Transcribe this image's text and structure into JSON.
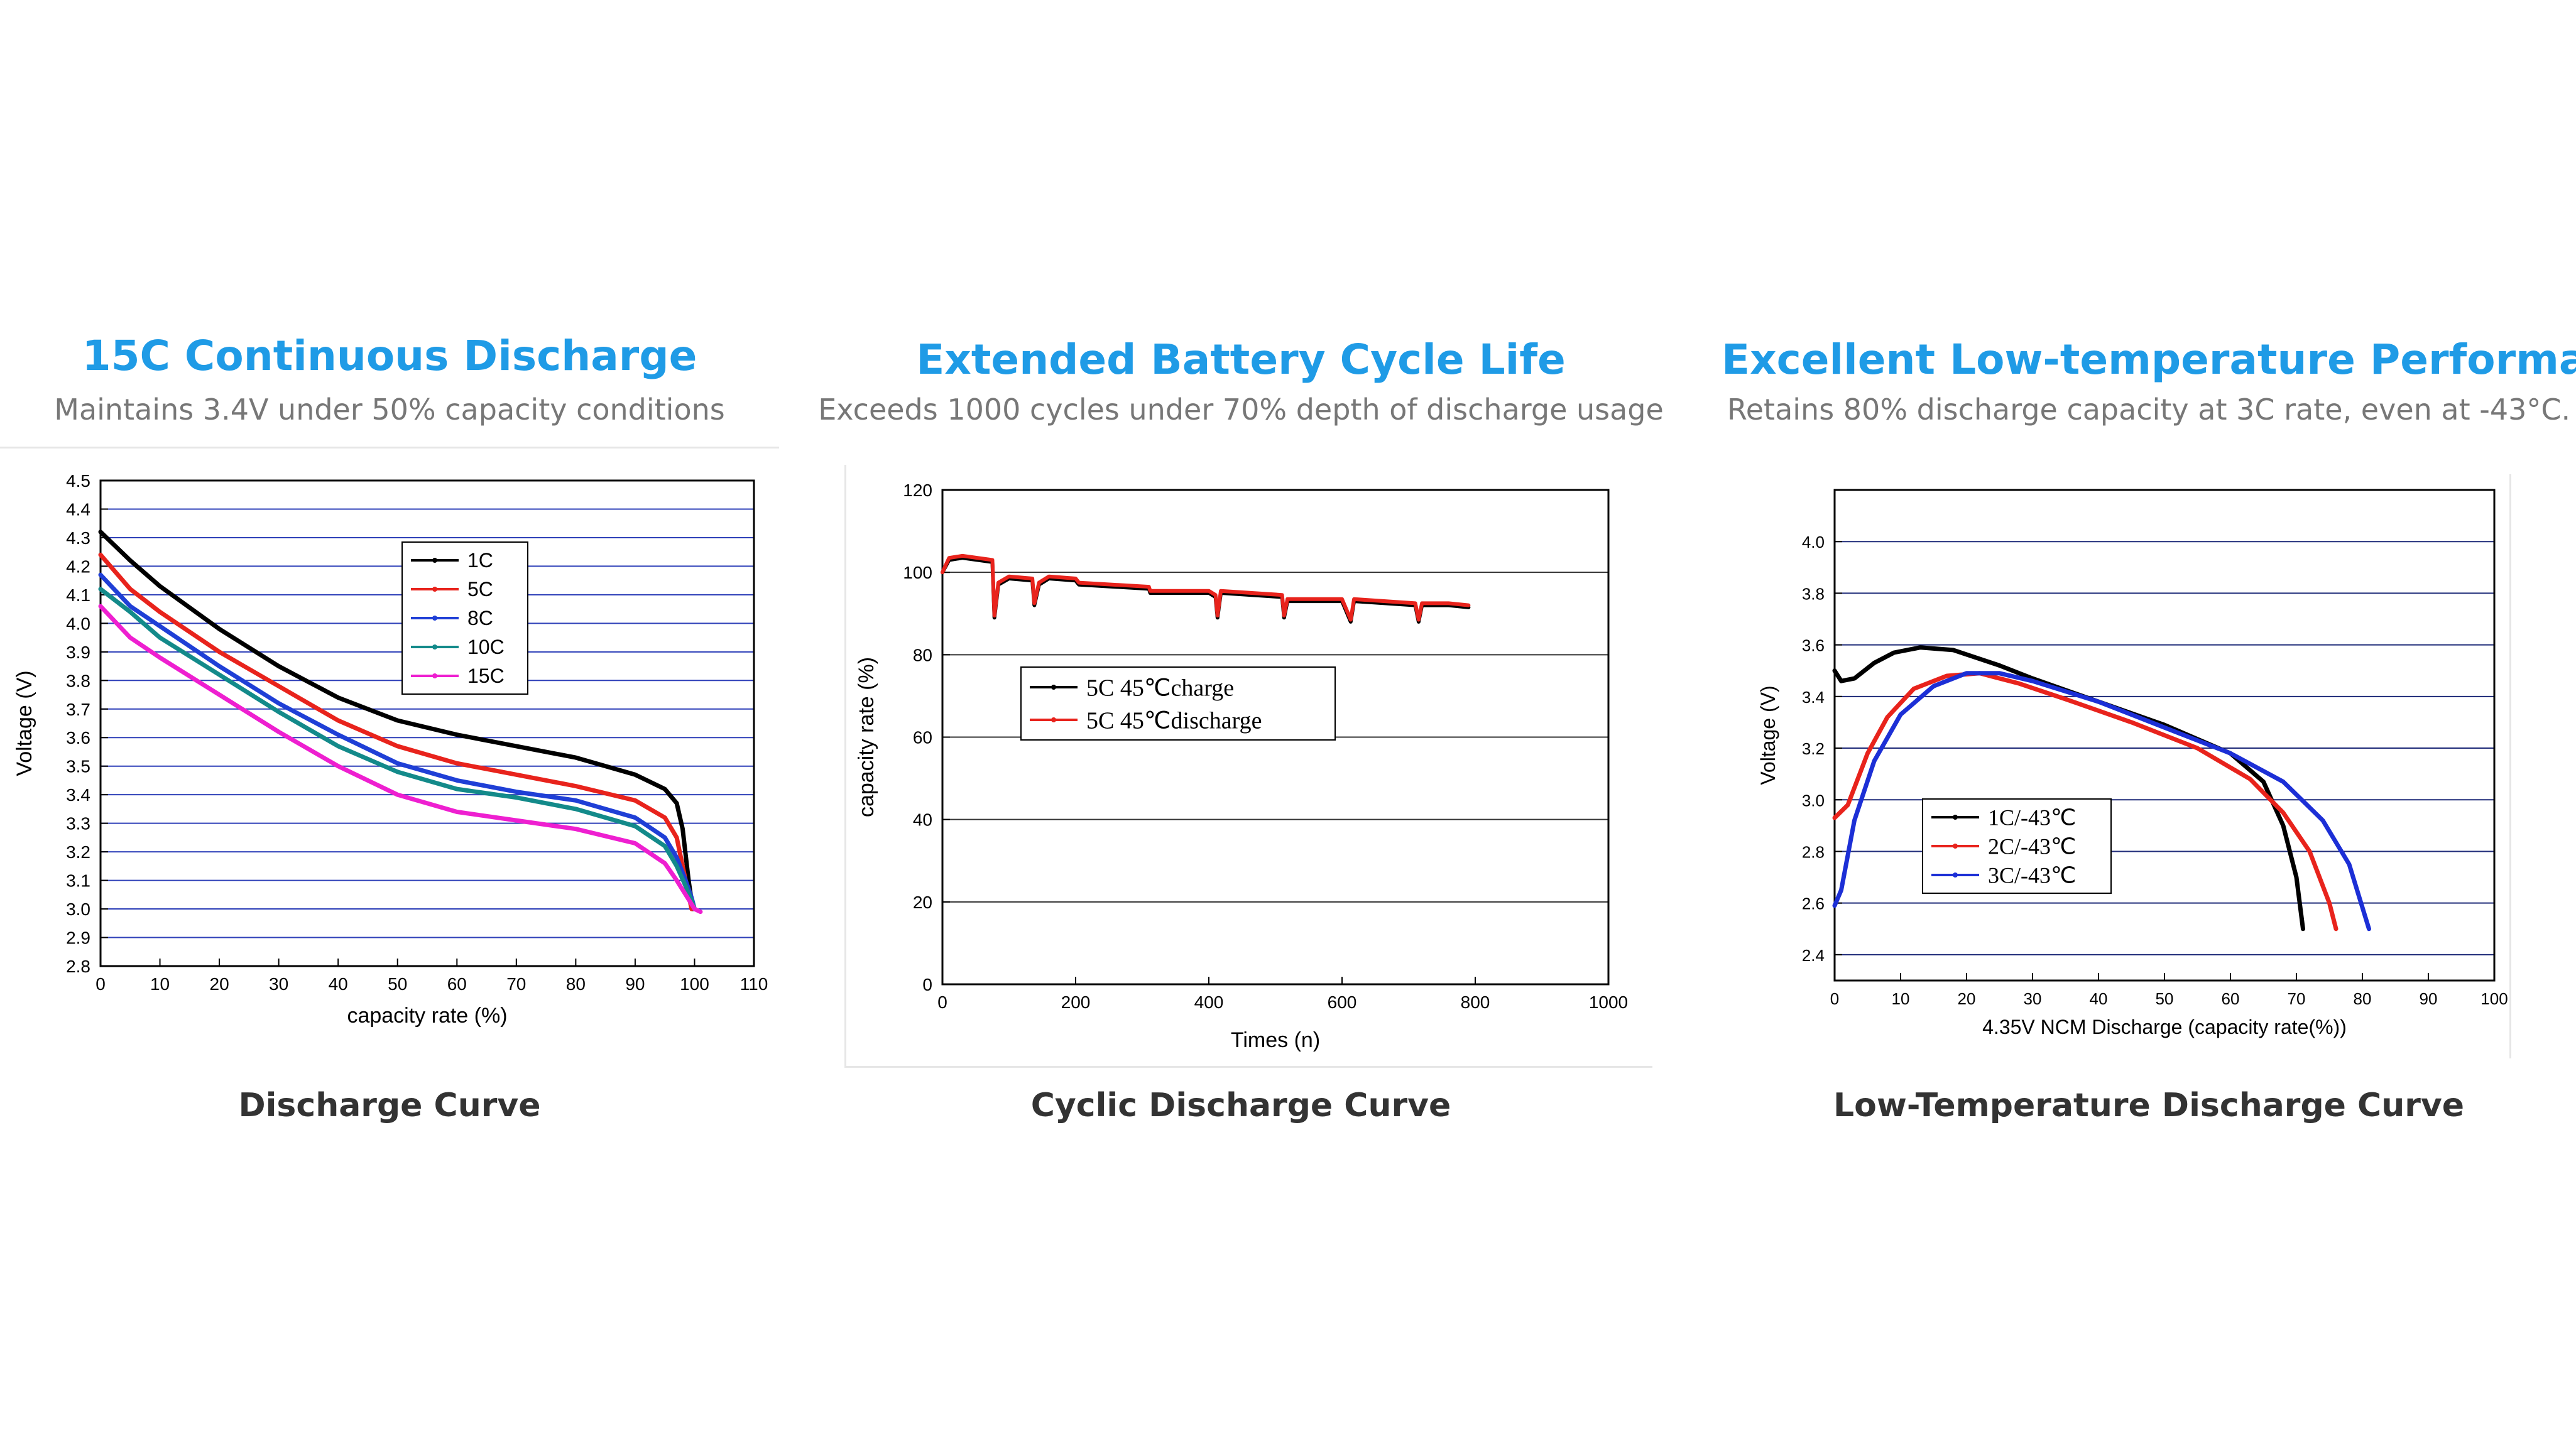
{
  "panels": [
    {
      "title": "15C Continuous Discharge",
      "subtitle": "Maintains 3.4V under 50% capacity conditions",
      "caption": "Discharge Curve"
    },
    {
      "title": "Extended Battery Cycle Life",
      "subtitle": "Exceeds 1000 cycles under 70% depth of discharge usage",
      "caption": "Cyclic Discharge Curve"
    },
    {
      "title": "Excellent Low-temperature Performance",
      "subtitle": "Retains 80% discharge capacity at 3C rate, even at -43°C.",
      "caption": "Low-Temperature Discharge Curve"
    }
  ],
  "chart_data": [
    {
      "type": "line",
      "xlabel": "capacity rate (%)",
      "ylabel": "Voltage (V)",
      "xlim": [
        0,
        110
      ],
      "ylim": [
        2.8,
        4.5
      ],
      "xticks": [
        "0",
        "10",
        "20",
        "30",
        "40",
        "50",
        "60",
        "70",
        "80",
        "90",
        "100",
        "110"
      ],
      "yticks": [
        "2.8",
        "2.9",
        "3.0",
        "3.1",
        "3.2",
        "3.3",
        "3.4",
        "3.5",
        "3.6",
        "3.7",
        "3.8",
        "3.9",
        "4.0",
        "4.1",
        "4.2",
        "4.3",
        "4.4",
        "4.5"
      ],
      "grid": true,
      "legend_position": "top-center",
      "series": [
        {
          "name": "1C",
          "color": "#000000",
          "points": [
            [
              0,
              4.32
            ],
            [
              5,
              4.22
            ],
            [
              10,
              4.13
            ],
            [
              20,
              3.98
            ],
            [
              30,
              3.85
            ],
            [
              40,
              3.74
            ],
            [
              50,
              3.66
            ],
            [
              60,
              3.61
            ],
            [
              70,
              3.57
            ],
            [
              80,
              3.53
            ],
            [
              90,
              3.47
            ],
            [
              95,
              3.42
            ],
            [
              97,
              3.37
            ],
            [
              98,
              3.28
            ],
            [
              99,
              3.1
            ],
            [
              99.7,
              3.0
            ]
          ]
        },
        {
          "name": "5C",
          "color": "#e8231c",
          "points": [
            [
              0,
              4.24
            ],
            [
              5,
              4.12
            ],
            [
              10,
              4.04
            ],
            [
              20,
              3.9
            ],
            [
              30,
              3.78
            ],
            [
              40,
              3.66
            ],
            [
              50,
              3.57
            ],
            [
              60,
              3.51
            ],
            [
              70,
              3.47
            ],
            [
              80,
              3.43
            ],
            [
              90,
              3.38
            ],
            [
              95,
              3.32
            ],
            [
              97,
              3.25
            ],
            [
              98,
              3.15
            ],
            [
              99,
              3.05
            ],
            [
              99.5,
              3.0
            ]
          ]
        },
        {
          "name": "8C",
          "color": "#1f3fd6",
          "points": [
            [
              0,
              4.17
            ],
            [
              5,
              4.06
            ],
            [
              10,
              3.99
            ],
            [
              20,
              3.85
            ],
            [
              30,
              3.72
            ],
            [
              40,
              3.61
            ],
            [
              50,
              3.51
            ],
            [
              60,
              3.45
            ],
            [
              70,
              3.41
            ],
            [
              80,
              3.38
            ],
            [
              90,
              3.32
            ],
            [
              95,
              3.25
            ],
            [
              97,
              3.18
            ],
            [
              98.5,
              3.1
            ],
            [
              99.5,
              3.04
            ],
            [
              100,
              3.0
            ]
          ]
        },
        {
          "name": "10C",
          "color": "#138a8a",
          "points": [
            [
              0,
              4.12
            ],
            [
              5,
              4.04
            ],
            [
              10,
              3.95
            ],
            [
              20,
              3.82
            ],
            [
              30,
              3.69
            ],
            [
              40,
              3.57
            ],
            [
              50,
              3.48
            ],
            [
              60,
              3.42
            ],
            [
              70,
              3.39
            ],
            [
              80,
              3.35
            ],
            [
              90,
              3.29
            ],
            [
              95,
              3.22
            ],
            [
              97,
              3.15
            ],
            [
              98.5,
              3.08
            ],
            [
              99.5,
              3.03
            ],
            [
              100,
              3.0
            ]
          ]
        },
        {
          "name": "15C",
          "color": "#ee1fd0",
          "points": [
            [
              0,
              4.06
            ],
            [
              5,
              3.95
            ],
            [
              10,
              3.88
            ],
            [
              20,
              3.75
            ],
            [
              30,
              3.62
            ],
            [
              40,
              3.5
            ],
            [
              50,
              3.4
            ],
            [
              60,
              3.34
            ],
            [
              70,
              3.31
            ],
            [
              80,
              3.28
            ],
            [
              90,
              3.23
            ],
            [
              95,
              3.16
            ],
            [
              97,
              3.1
            ],
            [
              98.5,
              3.05
            ],
            [
              100,
              3.0
            ],
            [
              101,
              2.99
            ]
          ]
        }
      ]
    },
    {
      "type": "line",
      "xlabel": "Times (n)",
      "ylabel": "capacity rate (%)",
      "xlim": [
        0,
        1000
      ],
      "ylim": [
        0,
        120
      ],
      "xticks": [
        "0",
        "200",
        "400",
        "600",
        "800",
        "1000"
      ],
      "yticks": [
        "0",
        "20",
        "40",
        "60",
        "80",
        "100",
        "120"
      ],
      "grid": true,
      "legend_position": "center-left",
      "series": [
        {
          "name": "5C 45℃charge",
          "color": "#000000",
          "points": [
            [
              0,
              100
            ],
            [
              10,
              103
            ],
            [
              30,
              103.5
            ],
            [
              75,
              102.5
            ],
            [
              78,
              89
            ],
            [
              84,
              97
            ],
            [
              100,
              98.5
            ],
            [
              135,
              98
            ],
            [
              138,
              92
            ],
            [
              145,
              97
            ],
            [
              160,
              98.5
            ],
            [
              200,
              98
            ],
            [
              205,
              97
            ],
            [
              310,
              96
            ],
            [
              312,
              95
            ],
            [
              400,
              95
            ],
            [
              410,
              94
            ],
            [
              413,
              89
            ],
            [
              418,
              95
            ],
            [
              510,
              94
            ],
            [
              513,
              89
            ],
            [
              518,
              93
            ],
            [
              600,
              93
            ],
            [
              613,
              88
            ],
            [
              618,
              93
            ],
            [
              710,
              92
            ],
            [
              715,
              88
            ],
            [
              720,
              92
            ],
            [
              760,
              92
            ],
            [
              790,
              91.5
            ]
          ]
        },
        {
          "name": "5C 45℃discharge",
          "color": "#e8231c",
          "points": [
            [
              0,
              100
            ],
            [
              10,
              103.5
            ],
            [
              30,
              104
            ],
            [
              75,
              103
            ],
            [
              78,
              89.5
            ],
            [
              84,
              97.5
            ],
            [
              100,
              99
            ],
            [
              135,
              98.5
            ],
            [
              138,
              92.5
            ],
            [
              145,
              97.5
            ],
            [
              160,
              99
            ],
            [
              200,
              98.5
            ],
            [
              205,
              97.5
            ],
            [
              310,
              96.5
            ],
            [
              312,
              95.5
            ],
            [
              400,
              95.5
            ],
            [
              410,
              94.5
            ],
            [
              413,
              89.5
            ],
            [
              418,
              95.5
            ],
            [
              510,
              94.5
            ],
            [
              513,
              89.5
            ],
            [
              518,
              93.5
            ],
            [
              600,
              93.5
            ],
            [
              613,
              88.5
            ],
            [
              618,
              93.5
            ],
            [
              710,
              92.5
            ],
            [
              715,
              88.5
            ],
            [
              720,
              92.5
            ],
            [
              760,
              92.5
            ],
            [
              790,
              92
            ]
          ]
        }
      ]
    },
    {
      "type": "line",
      "xlabel": "4.35V NCM Discharge (capacity rate(%))",
      "ylabel": "Voltage (V)",
      "xlim": [
        0,
        100
      ],
      "ylim": [
        2.3,
        4.2
      ],
      "xticks": [
        "0",
        "10",
        "20",
        "30",
        "40",
        "50",
        "60",
        "70",
        "80",
        "90",
        "100"
      ],
      "yticks": [
        "2.4",
        "2.6",
        "2.8",
        "3.0",
        "3.2",
        "3.4",
        "3.6",
        "3.8",
        "4.0"
      ],
      "grid": true,
      "legend_position": "bottom-center",
      "series": [
        {
          "name": "1C/-43℃",
          "color": "#000000",
          "points": [
            [
              0,
              3.5
            ],
            [
              1,
              3.46
            ],
            [
              3,
              3.47
            ],
            [
              6,
              3.53
            ],
            [
              9,
              3.57
            ],
            [
              13,
              3.59
            ],
            [
              18,
              3.58
            ],
            [
              25,
              3.52
            ],
            [
              30,
              3.47
            ],
            [
              40,
              3.38
            ],
            [
              50,
              3.29
            ],
            [
              60,
              3.18
            ],
            [
              65,
              3.07
            ],
            [
              68,
              2.9
            ],
            [
              70,
              2.7
            ],
            [
              71,
              2.5
            ]
          ]
        },
        {
          "name": "2C/-43℃",
          "color": "#e8231c",
          "points": [
            [
              0,
              2.93
            ],
            [
              2,
              2.98
            ],
            [
              5,
              3.18
            ],
            [
              8,
              3.32
            ],
            [
              12,
              3.43
            ],
            [
              17,
              3.48
            ],
            [
              22,
              3.49
            ],
            [
              28,
              3.45
            ],
            [
              35,
              3.39
            ],
            [
              45,
              3.3
            ],
            [
              55,
              3.2
            ],
            [
              63,
              3.08
            ],
            [
              68,
              2.95
            ],
            [
              72,
              2.8
            ],
            [
              75,
              2.6
            ],
            [
              76,
              2.5
            ]
          ]
        },
        {
          "name": "3C/-43℃",
          "color": "#1c2fd6",
          "points": [
            [
              0,
              2.59
            ],
            [
              1,
              2.65
            ],
            [
              3,
              2.92
            ],
            [
              6,
              3.15
            ],
            [
              10,
              3.33
            ],
            [
              15,
              3.44
            ],
            [
              20,
              3.49
            ],
            [
              25,
              3.49
            ],
            [
              30,
              3.46
            ],
            [
              40,
              3.38
            ],
            [
              50,
              3.28
            ],
            [
              60,
              3.18
            ],
            [
              68,
              3.07
            ],
            [
              74,
              2.92
            ],
            [
              78,
              2.75
            ],
            [
              81,
              2.5
            ]
          ]
        }
      ]
    }
  ]
}
